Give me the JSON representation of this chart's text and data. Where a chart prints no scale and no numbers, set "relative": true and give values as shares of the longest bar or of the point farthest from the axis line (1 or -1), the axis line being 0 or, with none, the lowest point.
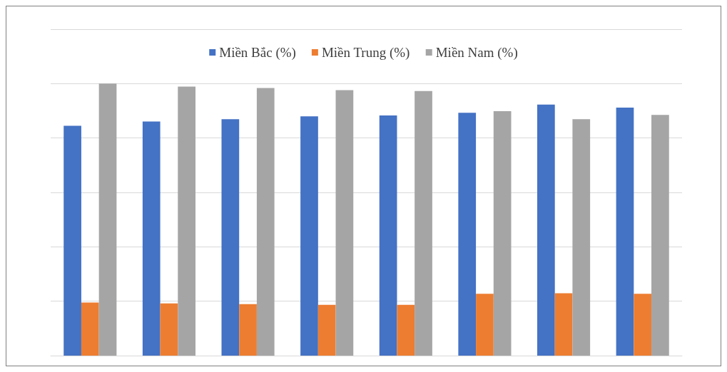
{
  "chart_data": {
    "type": "bar",
    "relative": true,
    "categories": [
      null,
      null,
      null,
      null,
      null,
      null,
      null,
      null
    ],
    "series": [
      {
        "name": "Miền Bắc (%)",
        "color": "#4472c4",
        "values": [
          0.845,
          0.861,
          0.869,
          0.88,
          0.883,
          0.893,
          0.923,
          0.912
        ]
      },
      {
        "name": "Miền Trung (%)",
        "color": "#ed7d31",
        "values": [
          0.195,
          0.192,
          0.189,
          0.187,
          0.187,
          0.227,
          0.229,
          0.227
        ]
      },
      {
        "name": "Miền Nam (%)",
        "color": "#a5a5a5",
        "values": [
          1,
          0.989,
          0.984,
          0.976,
          0.973,
          0.899,
          0.869,
          0.885
        ]
      }
    ],
    "grid": true,
    "legend": "top"
  }
}
